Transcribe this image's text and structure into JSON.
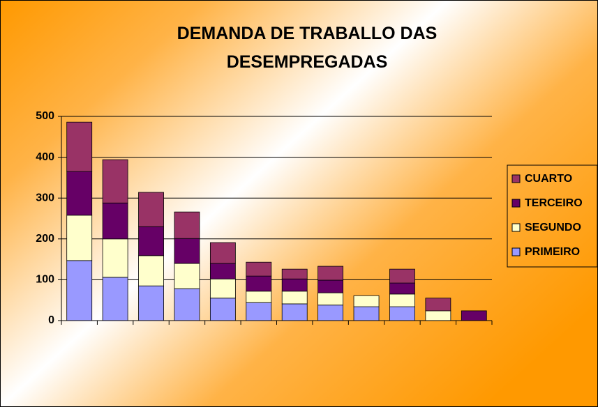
{
  "chart_data": {
    "type": "stacked_bar",
    "title": "DEMANDA DE TRABALLO DAS DESEMPREGADAS",
    "categories": [
      null,
      null,
      null,
      null,
      null,
      null,
      null,
      null,
      null,
      null,
      null,
      null
    ],
    "series": [
      {
        "name": "PRIMEIRO",
        "color": "#9999ff",
        "values": [
          147,
          106,
          85,
          78,
          55,
          44,
          41,
          38,
          34,
          34,
          0,
          0
        ]
      },
      {
        "name": "SEGUNDO",
        "color": "#ffffcc",
        "values": [
          111,
          94,
          74,
          62,
          47,
          28,
          31,
          30,
          27,
          31,
          24,
          0
        ]
      },
      {
        "name": "TERCEIRO",
        "color": "#660066",
        "values": [
          107,
          88,
          71,
          61,
          38,
          37,
          30,
          31,
          0,
          27,
          0,
          24
        ]
      },
      {
        "name": "CUARTO",
        "color": "#993366",
        "values": [
          121,
          106,
          84,
          65,
          51,
          34,
          24,
          34,
          0,
          34,
          31,
          0
        ]
      }
    ],
    "ylim": [
      0,
      500
    ],
    "yticks": [
      0,
      100,
      200,
      300,
      400,
      500
    ],
    "grid": true,
    "legend": "right"
  }
}
